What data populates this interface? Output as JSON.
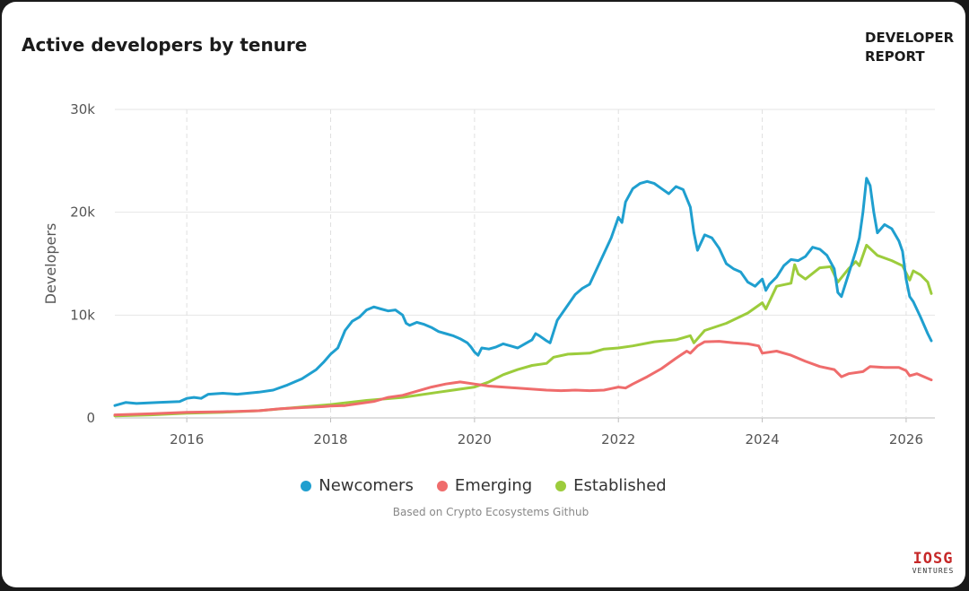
{
  "header": {
    "title": "Active developers by tenure",
    "brand_line1": "DEVELOPER",
    "brand_line2": "REPORT"
  },
  "footer": {
    "source": "Based on Crypto Ecosystems Github",
    "logo_main": "IOSG",
    "logo_sub": "VENTURES"
  },
  "chart_data": {
    "type": "line",
    "title": "Active developers by tenure",
    "ylabel": "Developers",
    "xlabel": "",
    "xlim": [
      2015.0,
      2026.4
    ],
    "ylim": [
      0,
      30000
    ],
    "x_ticks": [
      2016,
      2018,
      2020,
      2022,
      2024,
      2026
    ],
    "x_tick_labels": [
      "2016",
      "2018",
      "2020",
      "2022",
      "2024",
      "2026"
    ],
    "y_ticks": [
      0,
      10000,
      20000,
      30000
    ],
    "y_tick_labels": [
      "0",
      "10k",
      "20k",
      "30k"
    ],
    "grid": {
      "x": "dashed",
      "y": "solid"
    },
    "legend_position": "bottom-center",
    "series": [
      {
        "name": "Newcomers",
        "color": "#1f9fcf",
        "points": [
          [
            2015.0,
            1200
          ],
          [
            2015.15,
            1500
          ],
          [
            2015.3,
            1400
          ],
          [
            2015.6,
            1500
          ],
          [
            2015.9,
            1600
          ],
          [
            2016.0,
            1900
          ],
          [
            2016.1,
            2000
          ],
          [
            2016.2,
            1900
          ],
          [
            2016.3,
            2300
          ],
          [
            2016.5,
            2400
          ],
          [
            2016.7,
            2300
          ],
          [
            2017.0,
            2500
          ],
          [
            2017.2,
            2700
          ],
          [
            2017.4,
            3200
          ],
          [
            2017.6,
            3800
          ],
          [
            2017.8,
            4700
          ],
          [
            2017.9,
            5400
          ],
          [
            2018.0,
            6200
          ],
          [
            2018.1,
            6800
          ],
          [
            2018.2,
            8500
          ],
          [
            2018.3,
            9400
          ],
          [
            2018.4,
            9800
          ],
          [
            2018.5,
            10500
          ],
          [
            2018.6,
            10800
          ],
          [
            2018.7,
            10600
          ],
          [
            2018.8,
            10400
          ],
          [
            2018.9,
            10500
          ],
          [
            2019.0,
            10000
          ],
          [
            2019.05,
            9200
          ],
          [
            2019.1,
            9000
          ],
          [
            2019.2,
            9300
          ],
          [
            2019.3,
            9100
          ],
          [
            2019.4,
            8800
          ],
          [
            2019.5,
            8400
          ],
          [
            2019.6,
            8200
          ],
          [
            2019.7,
            8000
          ],
          [
            2019.8,
            7700
          ],
          [
            2019.9,
            7300
          ],
          [
            2019.95,
            6900
          ],
          [
            2020.0,
            6400
          ],
          [
            2020.05,
            6100
          ],
          [
            2020.1,
            6800
          ],
          [
            2020.2,
            6700
          ],
          [
            2020.3,
            6900
          ],
          [
            2020.4,
            7200
          ],
          [
            2020.5,
            7000
          ],
          [
            2020.6,
            6800
          ],
          [
            2020.7,
            7200
          ],
          [
            2020.8,
            7600
          ],
          [
            2020.85,
            8200
          ],
          [
            2020.9,
            8000
          ],
          [
            2021.0,
            7500
          ],
          [
            2021.05,
            7300
          ],
          [
            2021.15,
            9500
          ],
          [
            2021.3,
            11000
          ],
          [
            2021.4,
            12000
          ],
          [
            2021.5,
            12600
          ],
          [
            2021.6,
            13000
          ],
          [
            2021.7,
            14500
          ],
          [
            2021.8,
            16000
          ],
          [
            2021.9,
            17500
          ],
          [
            2021.95,
            18500
          ],
          [
            2022.0,
            19500
          ],
          [
            2022.05,
            19000
          ],
          [
            2022.1,
            21000
          ],
          [
            2022.2,
            22300
          ],
          [
            2022.3,
            22800
          ],
          [
            2022.4,
            23000
          ],
          [
            2022.5,
            22800
          ],
          [
            2022.6,
            22300
          ],
          [
            2022.7,
            21800
          ],
          [
            2022.8,
            22500
          ],
          [
            2022.9,
            22200
          ],
          [
            2023.0,
            20500
          ],
          [
            2023.05,
            18000
          ],
          [
            2023.1,
            16300
          ],
          [
            2023.2,
            17800
          ],
          [
            2023.3,
            17500
          ],
          [
            2023.4,
            16500
          ],
          [
            2023.5,
            15000
          ],
          [
            2023.6,
            14500
          ],
          [
            2023.7,
            14200
          ],
          [
            2023.8,
            13200
          ],
          [
            2023.9,
            12800
          ],
          [
            2024.0,
            13500
          ],
          [
            2024.05,
            12400
          ],
          [
            2024.1,
            13000
          ],
          [
            2024.2,
            13700
          ],
          [
            2024.3,
            14800
          ],
          [
            2024.4,
            15400
          ],
          [
            2024.5,
            15300
          ],
          [
            2024.6,
            15700
          ],
          [
            2024.7,
            16600
          ],
          [
            2024.8,
            16400
          ],
          [
            2024.9,
            15800
          ],
          [
            2025.0,
            14500
          ],
          [
            2025.05,
            12200
          ],
          [
            2025.1,
            11800
          ],
          [
            2025.2,
            14000
          ],
          [
            2025.3,
            16200
          ],
          [
            2025.35,
            17500
          ],
          [
            2025.4,
            20000
          ],
          [
            2025.45,
            23300
          ],
          [
            2025.5,
            22600
          ],
          [
            2025.55,
            20000
          ],
          [
            2025.6,
            18000
          ],
          [
            2025.7,
            18800
          ],
          [
            2025.8,
            18400
          ],
          [
            2025.9,
            17200
          ],
          [
            2025.95,
            16200
          ],
          [
            2026.0,
            13500
          ],
          [
            2026.05,
            11800
          ],
          [
            2026.1,
            11300
          ],
          [
            2026.2,
            9800
          ],
          [
            2026.3,
            8200
          ],
          [
            2026.35,
            7500
          ]
        ]
      },
      {
        "name": "Emerging",
        "color": "#ef6c6c",
        "points": [
          [
            2015.0,
            300
          ],
          [
            2015.5,
            400
          ],
          [
            2016.0,
            550
          ],
          [
            2016.5,
            600
          ],
          [
            2017.0,
            700
          ],
          [
            2017.3,
            900
          ],
          [
            2017.6,
            1000
          ],
          [
            2017.9,
            1100
          ],
          [
            2018.0,
            1150
          ],
          [
            2018.2,
            1200
          ],
          [
            2018.4,
            1400
          ],
          [
            2018.6,
            1600
          ],
          [
            2018.8,
            2000
          ],
          [
            2019.0,
            2200
          ],
          [
            2019.2,
            2600
          ],
          [
            2019.4,
            3000
          ],
          [
            2019.6,
            3300
          ],
          [
            2019.8,
            3500
          ],
          [
            2020.0,
            3300
          ],
          [
            2020.2,
            3100
          ],
          [
            2020.4,
            3000
          ],
          [
            2020.6,
            2900
          ],
          [
            2020.8,
            2800
          ],
          [
            2021.0,
            2700
          ],
          [
            2021.2,
            2650
          ],
          [
            2021.4,
            2700
          ],
          [
            2021.6,
            2650
          ],
          [
            2021.8,
            2700
          ],
          [
            2021.9,
            2850
          ],
          [
            2022.0,
            3000
          ],
          [
            2022.1,
            2900
          ],
          [
            2022.2,
            3300
          ],
          [
            2022.4,
            4000
          ],
          [
            2022.6,
            4800
          ],
          [
            2022.8,
            5800
          ],
          [
            2022.95,
            6500
          ],
          [
            2023.0,
            6300
          ],
          [
            2023.1,
            7000
          ],
          [
            2023.2,
            7400
          ],
          [
            2023.4,
            7450
          ],
          [
            2023.6,
            7300
          ],
          [
            2023.8,
            7200
          ],
          [
            2023.95,
            7000
          ],
          [
            2024.0,
            6300
          ],
          [
            2024.2,
            6500
          ],
          [
            2024.4,
            6100
          ],
          [
            2024.6,
            5500
          ],
          [
            2024.8,
            5000
          ],
          [
            2025.0,
            4700
          ],
          [
            2025.1,
            4000
          ],
          [
            2025.2,
            4300
          ],
          [
            2025.4,
            4500
          ],
          [
            2025.5,
            5000
          ],
          [
            2025.7,
            4900
          ],
          [
            2025.9,
            4900
          ],
          [
            2026.0,
            4600
          ],
          [
            2026.05,
            4100
          ],
          [
            2026.15,
            4300
          ],
          [
            2026.35,
            3700
          ]
        ]
      },
      {
        "name": "Established",
        "color": "#9ccc3c",
        "points": [
          [
            2015.0,
            200
          ],
          [
            2015.5,
            300
          ],
          [
            2016.0,
            450
          ],
          [
            2016.5,
            550
          ],
          [
            2017.0,
            700
          ],
          [
            2017.5,
            1000
          ],
          [
            2018.0,
            1300
          ],
          [
            2018.5,
            1700
          ],
          [
            2019.0,
            2000
          ],
          [
            2019.5,
            2500
          ],
          [
            2020.0,
            3000
          ],
          [
            2020.2,
            3500
          ],
          [
            2020.4,
            4200
          ],
          [
            2020.6,
            4700
          ],
          [
            2020.8,
            5100
          ],
          [
            2021.0,
            5300
          ],
          [
            2021.1,
            5900
          ],
          [
            2021.3,
            6200
          ],
          [
            2021.6,
            6300
          ],
          [
            2021.8,
            6700
          ],
          [
            2022.0,
            6800
          ],
          [
            2022.2,
            7000
          ],
          [
            2022.5,
            7400
          ],
          [
            2022.8,
            7600
          ],
          [
            2023.0,
            8000
          ],
          [
            2023.05,
            7300
          ],
          [
            2023.2,
            8500
          ],
          [
            2023.5,
            9200
          ],
          [
            2023.8,
            10200
          ],
          [
            2024.0,
            11200
          ],
          [
            2024.05,
            10600
          ],
          [
            2024.2,
            12800
          ],
          [
            2024.4,
            13100
          ],
          [
            2024.45,
            14900
          ],
          [
            2024.5,
            14000
          ],
          [
            2024.6,
            13500
          ],
          [
            2024.8,
            14600
          ],
          [
            2024.95,
            14700
          ],
          [
            2025.05,
            13200
          ],
          [
            2025.2,
            14500
          ],
          [
            2025.3,
            15200
          ],
          [
            2025.35,
            14800
          ],
          [
            2025.45,
            16800
          ],
          [
            2025.6,
            15800
          ],
          [
            2025.8,
            15300
          ],
          [
            2025.95,
            14800
          ],
          [
            2026.05,
            13400
          ],
          [
            2026.1,
            14300
          ],
          [
            2026.2,
            13900
          ],
          [
            2026.3,
            13200
          ],
          [
            2026.35,
            12100
          ]
        ]
      }
    ]
  }
}
